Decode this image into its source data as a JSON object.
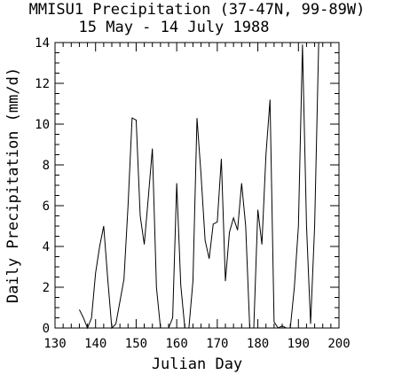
{
  "chart_data": {
    "type": "line",
    "title": "MMISU1 Precipitation (37-47N, 99-89W)",
    "subtitle": "15 May - 14 July 1988",
    "xlabel": "Julian Day",
    "ylabel": "Daily Precipitation (mm/d)",
    "xlim": [
      130,
      200
    ],
    "ylim": [
      0,
      14
    ],
    "xticks_major": [
      130,
      140,
      150,
      160,
      170,
      180,
      190,
      200
    ],
    "yticks_major": [
      0,
      2,
      4,
      6,
      8,
      10,
      12,
      14
    ],
    "xticks_minor_step": 2,
    "yticks_minor_step": 0.5,
    "grid": false,
    "series": [
      {
        "x": [
          136,
          137,
          138,
          139,
          140,
          141,
          142,
          143,
          144,
          145,
          146,
          147,
          148,
          149,
          150,
          151,
          152,
          153,
          154,
          155,
          156,
          157,
          158,
          159,
          160,
          161,
          162,
          163,
          164,
          165,
          166,
          167,
          168,
          169,
          170,
          171,
          172,
          173,
          174,
          175,
          176,
          177,
          178,
          179,
          180,
          181,
          182,
          183,
          184,
          185,
          186,
          187,
          188,
          189,
          190,
          191,
          192,
          193,
          194,
          195
        ],
        "y": [
          0.9,
          0.5,
          0.0,
          0.5,
          2.7,
          4.0,
          5.0,
          2.4,
          0.0,
          0.2,
          1.3,
          2.4,
          6.0,
          10.3,
          10.2,
          5.5,
          4.1,
          6.4,
          8.8,
          2.0,
          0.0,
          0.0,
          0.0,
          0.5,
          7.1,
          2.1,
          0.0,
          0.0,
          2.3,
          10.3,
          7.5,
          4.3,
          3.4,
          5.1,
          5.2,
          8.3,
          2.3,
          4.7,
          5.4,
          4.8,
          7.1,
          5.0,
          0.0,
          0.0,
          5.8,
          4.1,
          8.5,
          11.2,
          0.3,
          0.0,
          0.1,
          0.0,
          0.0,
          2.0,
          5.0,
          13.9,
          5.0,
          0.2,
          5.0,
          14.0
        ]
      }
    ]
  }
}
